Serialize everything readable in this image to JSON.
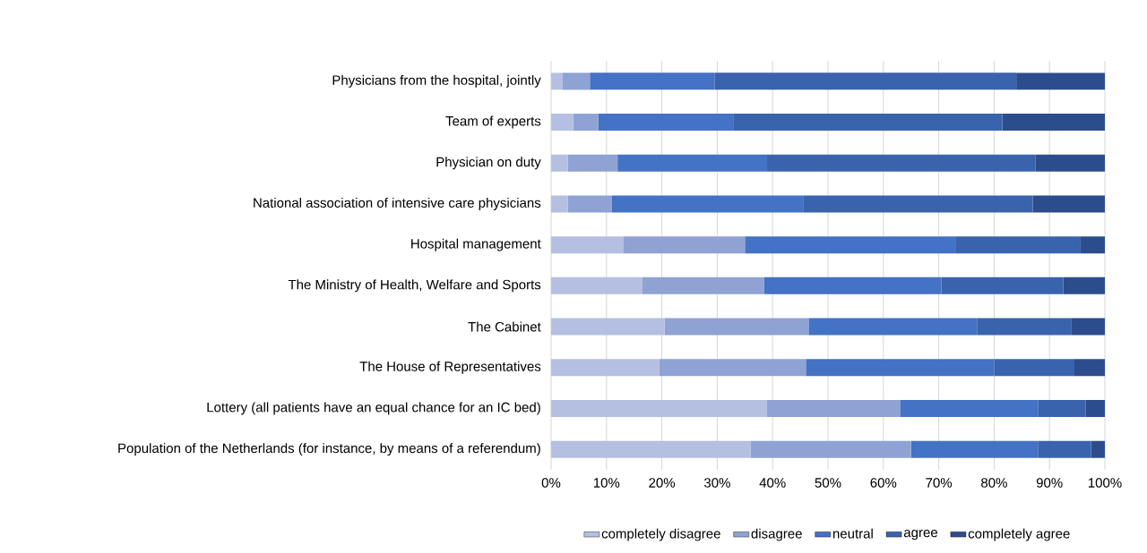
{
  "chart_data": {
    "type": "bar",
    "orientation": "horizontal",
    "stacked": true,
    "categories": [
      "Physicians from the hospital, jointly",
      "Team of experts",
      "Physician on duty",
      "National association of intensive care physicians",
      "Hospital management",
      "The Ministry of Health, Welfare and Sports",
      "The Cabinet",
      "The House of Representatives",
      "Lottery (all patients have an equal chance for an IC bed)",
      "Population of the Netherlands (for instance, by means of a referendum)"
    ],
    "series": [
      {
        "name": "completely disagree",
        "color": "#b4bfe2",
        "values": [
          2,
          4,
          3,
          3,
          13,
          16.5,
          20.5,
          19.5,
          39,
          36
        ]
      },
      {
        "name": "disagree",
        "color": "#8fa2d4",
        "values": [
          5,
          4.5,
          9,
          8,
          22,
          22,
          26,
          26.5,
          24,
          29
        ]
      },
      {
        "name": "neutral",
        "color": "#4472c4",
        "values": [
          22.5,
          24.5,
          27,
          34.5,
          38,
          32,
          30.5,
          34,
          25,
          23
        ]
      },
      {
        "name": "agree",
        "color": "#3a63ad",
        "values": [
          54.5,
          48.5,
          48.5,
          41.5,
          22.5,
          22,
          17,
          14.5,
          8.5,
          9.5
        ]
      },
      {
        "name": "completely agree",
        "color": "#2c4d8d",
        "values": [
          16,
          18.5,
          12.5,
          13,
          4.5,
          7.5,
          6,
          5.5,
          3.5,
          2.5
        ]
      }
    ],
    "xlim": [
      0,
      100
    ],
    "xticks": [
      {
        "value": 0,
        "label": "0%"
      },
      {
        "value": 10,
        "label": "10%"
      },
      {
        "value": 20,
        "label": "20%"
      },
      {
        "value": 30,
        "label": "30%"
      },
      {
        "value": 40,
        "label": "40%"
      },
      {
        "value": 50,
        "label": "50%"
      },
      {
        "value": 60,
        "label": "60%"
      },
      {
        "value": 70,
        "label": "70%"
      },
      {
        "value": 80,
        "label": "80%"
      },
      {
        "value": 90,
        "label": "90%"
      },
      {
        "value": 100,
        "label": "100%"
      }
    ],
    "grid": "x",
    "legend": "bottom"
  }
}
